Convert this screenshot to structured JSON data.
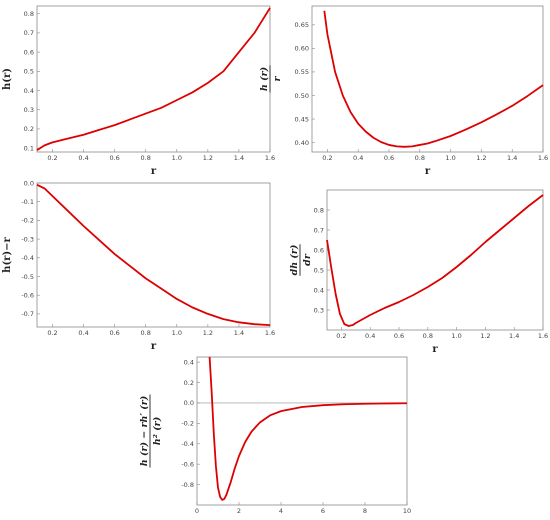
{
  "chart_data": [
    {
      "type": "line",
      "xlabel": "r",
      "ylabel": "h(r)",
      "xlim": [
        0.1,
        1.6
      ],
      "ylim": [
        0.08,
        0.84
      ],
      "xticks": [
        "0.2",
        "0.4",
        "0.6",
        "0.8",
        "1.0",
        "1.2",
        "1.4",
        "1.6"
      ],
      "yticks": [
        "0.1",
        "0.2",
        "0.3",
        "0.4",
        "0.5",
        "0.6",
        "0.7",
        "0.8"
      ],
      "x": [
        0.1,
        0.15,
        0.2,
        0.3,
        0.4,
        0.5,
        0.6,
        0.7,
        0.8,
        0.9,
        1.0,
        1.1,
        1.2,
        1.3,
        1.4,
        1.5,
        1.6
      ],
      "y": [
        0.09,
        0.115,
        0.13,
        0.15,
        0.17,
        0.195,
        0.22,
        0.25,
        0.28,
        0.31,
        0.35,
        0.39,
        0.44,
        0.5,
        0.6,
        0.7,
        0.83
      ]
    },
    {
      "type": "line",
      "xlabel": "r",
      "ylabel": {
        "numerator": "h (r)",
        "denominator": "r"
      },
      "xlim": [
        0.1,
        1.6
      ],
      "ylim": [
        0.38,
        0.69
      ],
      "xticks": [
        "0.2",
        "0.4",
        "0.6",
        "0.8",
        "1.0",
        "1.2",
        "1.4",
        "1.6"
      ],
      "yticks": [
        "0.40",
        "0.45",
        "0.50",
        "0.55",
        "0.60",
        "0.65"
      ],
      "x": [
        0.18,
        0.2,
        0.25,
        0.3,
        0.35,
        0.4,
        0.45,
        0.5,
        0.55,
        0.6,
        0.65,
        0.7,
        0.75,
        0.8,
        0.85,
        0.9,
        1.0,
        1.1,
        1.2,
        1.3,
        1.4,
        1.5,
        1.6
      ],
      "y": [
        0.68,
        0.63,
        0.55,
        0.5,
        0.465,
        0.44,
        0.423,
        0.41,
        0.401,
        0.395,
        0.392,
        0.391,
        0.392,
        0.395,
        0.398,
        0.403,
        0.414,
        0.428,
        0.443,
        0.46,
        0.478,
        0.499,
        0.522
      ]
    },
    {
      "type": "line",
      "xlabel": "r",
      "ylabel": "h(r)−r",
      "xlim": [
        0.1,
        1.6
      ],
      "ylim": [
        -0.77,
        0.0
      ],
      "xticks": [
        "0.2",
        "0.4",
        "0.6",
        "0.8",
        "1.0",
        "1.2",
        "1.4",
        "1.6"
      ],
      "yticks": [
        "0.0",
        "-0.1",
        "-0.2",
        "-0.3",
        "-0.4",
        "-0.5",
        "-0.6",
        "-0.7"
      ],
      "x": [
        0.1,
        0.15,
        0.2,
        0.3,
        0.4,
        0.5,
        0.6,
        0.7,
        0.8,
        0.9,
        1.0,
        1.1,
        1.2,
        1.3,
        1.4,
        1.5,
        1.6
      ],
      "y": [
        -0.01,
        -0.03,
        -0.07,
        -0.15,
        -0.23,
        -0.305,
        -0.38,
        -0.445,
        -0.51,
        -0.565,
        -0.62,
        -0.665,
        -0.7,
        -0.728,
        -0.745,
        -0.755,
        -0.76
      ]
    },
    {
      "type": "line",
      "xlabel": "r",
      "ylabel": {
        "numerator": "dh (r)",
        "denominator": "dr"
      },
      "xlim": [
        0.1,
        1.6
      ],
      "ylim": [
        0.2,
        0.9
      ],
      "xticks": [
        "0.2",
        "0.4",
        "0.6",
        "0.8",
        "1.0",
        "1.2",
        "1.4",
        "1.6"
      ],
      "yticks": [
        "0.3",
        "0.4",
        "0.5",
        "0.6",
        "0.7",
        "0.8"
      ],
      "x": [
        0.1,
        0.13,
        0.16,
        0.19,
        0.22,
        0.25,
        0.28,
        0.3,
        0.35,
        0.4,
        0.5,
        0.6,
        0.7,
        0.8,
        0.9,
        1.0,
        1.1,
        1.2,
        1.3,
        1.4,
        1.5,
        1.6
      ],
      "y": [
        0.65,
        0.51,
        0.38,
        0.28,
        0.23,
        0.22,
        0.225,
        0.235,
        0.255,
        0.275,
        0.31,
        0.34,
        0.375,
        0.415,
        0.46,
        0.515,
        0.575,
        0.64,
        0.7,
        0.76,
        0.82,
        0.875
      ]
    },
    {
      "type": "line",
      "xlabel": "r",
      "ylabel": {
        "numerator": "h (r) − rh′ (r)",
        "denominator": "h² (r)"
      },
      "xlim": [
        0,
        10
      ],
      "ylim": [
        -1.0,
        0.45
      ],
      "xticks": [
        "0",
        "2",
        "4",
        "6",
        "8",
        "10"
      ],
      "yticks": [
        "0.4",
        "0.2",
        "0.0",
        "-0.2",
        "-0.4",
        "-0.6",
        "-0.8"
      ],
      "x": [
        0.6,
        0.7,
        0.8,
        0.9,
        1.0,
        1.1,
        1.2,
        1.3,
        1.4,
        1.6,
        1.8,
        2.0,
        2.3,
        2.6,
        3.0,
        3.5,
        4.0,
        5.0,
        6.0,
        7.0,
        8.0,
        9.0,
        10.0
      ],
      "y": [
        0.45,
        0.1,
        -0.3,
        -0.62,
        -0.83,
        -0.92,
        -0.95,
        -0.94,
        -0.9,
        -0.78,
        -0.64,
        -0.52,
        -0.38,
        -0.28,
        -0.19,
        -0.12,
        -0.08,
        -0.04,
        -0.022,
        -0.013,
        -0.008,
        -0.005,
        -0.003
      ]
    }
  ]
}
